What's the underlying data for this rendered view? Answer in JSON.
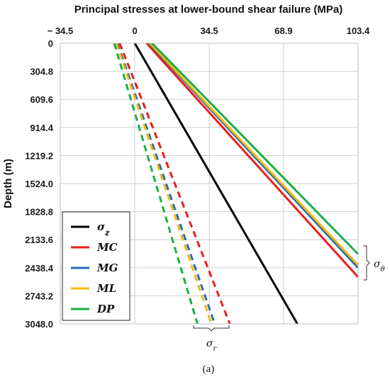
{
  "chart_data": {
    "type": "line",
    "title": "Principal stresses at lower-bound shear failure (MPa)",
    "ylabel": "Depth (m)",
    "x_ticks": [
      "− 34.5",
      "0",
      "34.5",
      "68.9",
      "103.4"
    ],
    "x_tick_values": [
      -34.5,
      0,
      34.5,
      68.9,
      103.4
    ],
    "xlim": [
      -34.5,
      103.4
    ],
    "y_ticks": [
      "0",
      "304.8",
      "609.6",
      "914.4",
      "1219.2",
      "1524.0",
      "1828.8",
      "2133.6",
      "2438.4",
      "2743.2",
      "3048.0"
    ],
    "y_tick_values": [
      0,
      304.8,
      609.6,
      914.4,
      1219.2,
      1524.0,
      1828.8,
      2133.6,
      2438.4,
      2743.2,
      3048.0
    ],
    "ylim": [
      3048.0,
      0
    ],
    "y_inverted": true,
    "x_axis_position": "top",
    "grid": true,
    "legend_position": "bottom-left",
    "series": [
      {
        "name": "σz",
        "color": "#000000",
        "style": "solid",
        "x": [
          0,
          75.3
        ],
        "y": [
          0,
          3048.0
        ]
      },
      {
        "name": "MC",
        "color": "#ee1c1c",
        "style": "solid",
        "x": [
          5.5,
          103.4
        ],
        "y": [
          0,
          2540
        ]
      },
      {
        "name": "MG",
        "color": "#1f6fc0",
        "style": "solid",
        "x": [
          6.5,
          103.4
        ],
        "y": [
          0,
          2440
        ]
      },
      {
        "name": "ML",
        "color": "#f5b800",
        "style": "solid",
        "x": [
          7.0,
          103.4
        ],
        "y": [
          0,
          2410
        ]
      },
      {
        "name": "DP",
        "color": "#1aae4a",
        "style": "solid",
        "x": [
          8.0,
          103.4
        ],
        "y": [
          0,
          2290
        ]
      },
      {
        "name": "MC",
        "color": "#ee1c1c",
        "style": "dashed",
        "x": [
          -7.0,
          44.0
        ],
        "y": [
          0,
          3048.0
        ]
      },
      {
        "name": "MG",
        "color": "#1f6fc0",
        "style": "dashed",
        "x": [
          -8.0,
          37.0
        ],
        "y": [
          0,
          3048.0
        ]
      },
      {
        "name": "ML",
        "color": "#f5b800",
        "style": "dashed",
        "x": [
          -8.5,
          35.5
        ],
        "y": [
          0,
          3048.0
        ]
      },
      {
        "name": "DP",
        "color": "#1aae4a",
        "style": "dashed",
        "x": [
          -9.5,
          29.0
        ],
        "y": [
          0,
          3048.0
        ]
      }
    ],
    "legend": [
      {
        "label": "σz",
        "color": "#000000"
      },
      {
        "label": "MC",
        "color": "#ee1c1c"
      },
      {
        "label": "MG",
        "color": "#1f6fc0"
      },
      {
        "label": "ML",
        "color": "#f5b800"
      },
      {
        "label": "DP",
        "color": "#1aae4a"
      }
    ],
    "annotations": {
      "sigma_theta": "σθ",
      "sigma_r": "σr"
    }
  },
  "caption": "(a)"
}
